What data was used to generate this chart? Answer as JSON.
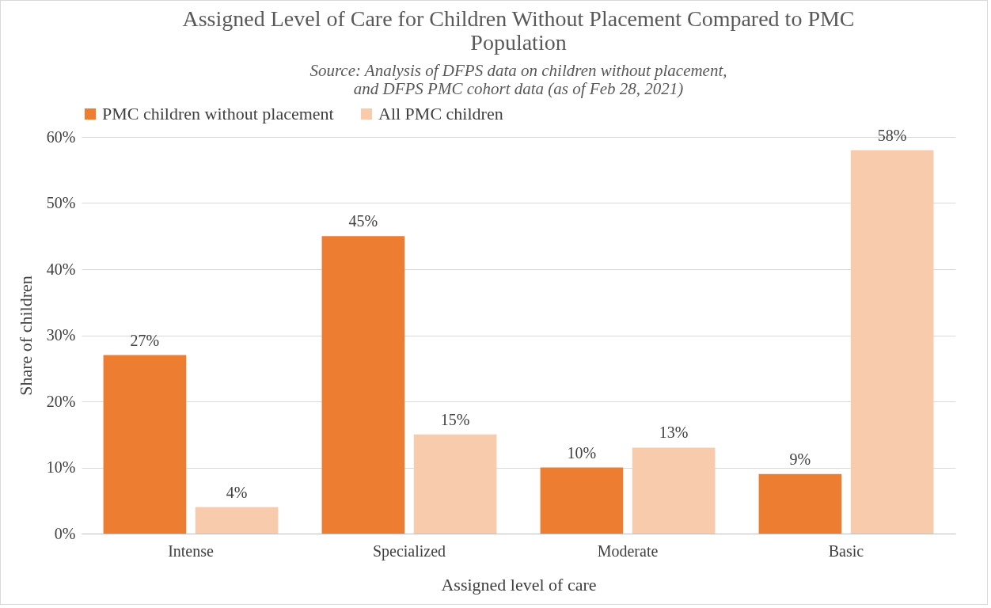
{
  "chart_data": {
    "type": "bar",
    "title": [
      "Assigned Level of Care for Children Without Placement Compared to PMC",
      "Population"
    ],
    "subtitle": [
      "Source: Analysis of DFPS data on children without placement,",
      "and DFPS PMC cohort data (as of Feb 28, 2021)"
    ],
    "xlabel": "Assigned level of care",
    "ylabel": "Share of children",
    "categories": [
      "Intense",
      "Specialized",
      "Moderate",
      "Basic"
    ],
    "series": [
      {
        "name": "PMC children without placement",
        "color": "#ed7d31",
        "values": [
          27,
          45,
          10,
          9
        ],
        "value_labels": [
          "27%",
          "45%",
          "10%",
          "9%"
        ]
      },
      {
        "name": "All PMC children",
        "color": "#f8cbad",
        "values": [
          4,
          15,
          13,
          58
        ],
        "value_labels": [
          "4%",
          "15%",
          "13%",
          "58%"
        ]
      }
    ],
    "ylim": [
      0,
      60
    ],
    "yticks": [
      {
        "value": 0,
        "label": "0%"
      },
      {
        "value": 10,
        "label": "10%"
      },
      {
        "value": 20,
        "label": "20%"
      },
      {
        "value": 30,
        "label": "30%"
      },
      {
        "value": 40,
        "label": "40%"
      },
      {
        "value": 50,
        "label": "50%"
      },
      {
        "value": 60,
        "label": "60%"
      }
    ],
    "grid": "y",
    "legend": "top"
  }
}
